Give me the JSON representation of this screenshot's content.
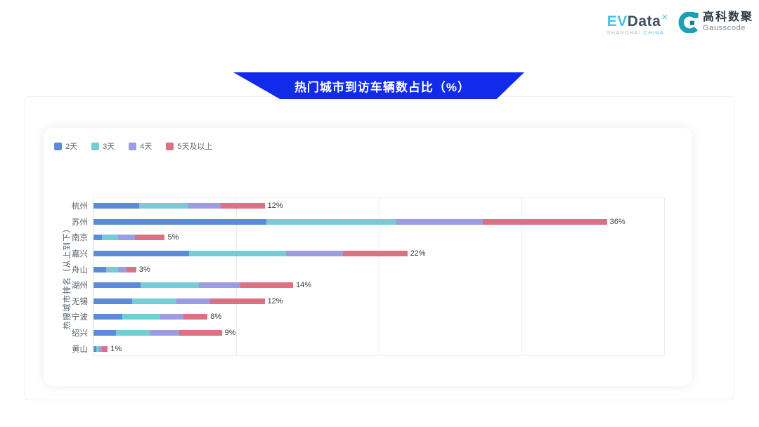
{
  "header": {
    "evdata_logo": {
      "ev": "EV",
      "data_part": "Data",
      "x_mark": "✕",
      "subtitle_left": "SHANGHAI",
      "subtitle_right": "CHINA"
    },
    "gausscode_logo": {
      "cn_name": "高科数聚",
      "en_name": "Gausscode",
      "icon_color": "#1E9FB5"
    }
  },
  "banner": {
    "title": "热门城市到访车辆数占比（%）",
    "bg_color": "#122BEA",
    "text_color": "#FFFFFF"
  },
  "chart_data": {
    "type": "bar",
    "orientation": "horizontal",
    "stacked": true,
    "title": "热门城市到访车辆数占比（%）",
    "ylabel": "热搜城市排名（从上到下）",
    "xlabel": "",
    "xlim": [
      0,
      40
    ],
    "gridlines_pct": [
      0,
      10,
      20,
      30,
      40
    ],
    "grid": true,
    "legend_position": "top-left",
    "categories": [
      "杭州",
      "苏州",
      "南京",
      "嘉兴",
      "舟山",
      "湖州",
      "无锡",
      "宁波",
      "绍兴",
      "黄山"
    ],
    "series": [
      {
        "name": "2天",
        "color": "#5B8BD9",
        "values": [
          3.2,
          12.1,
          0.6,
          6.7,
          0.9,
          3.3,
          2.7,
          2.0,
          1.6,
          0.2
        ]
      },
      {
        "name": "3天",
        "color": "#74CDD6",
        "values": [
          3.4,
          9.1,
          1.1,
          6.8,
          0.8,
          4.1,
          3.1,
          2.7,
          2.4,
          0.2
        ]
      },
      {
        "name": "4天",
        "color": "#9C9CE3",
        "values": [
          2.3,
          6.1,
          1.2,
          4.0,
          0.6,
          2.9,
          2.4,
          1.6,
          2.0,
          0.2
        ]
      },
      {
        "name": "5天及以上",
        "color": "#DC7186",
        "values": [
          3.1,
          8.7,
          2.1,
          4.5,
          0.7,
          3.7,
          3.8,
          1.7,
          3.0,
          0.4
        ]
      }
    ],
    "totals": [
      12,
      36,
      5,
      22,
      3,
      14,
      12,
      8,
      9,
      1
    ],
    "total_labels": [
      "12%",
      "36%",
      "5%",
      "22%",
      "3%",
      "14%",
      "12%",
      "8%",
      "9%",
      "1%"
    ]
  }
}
